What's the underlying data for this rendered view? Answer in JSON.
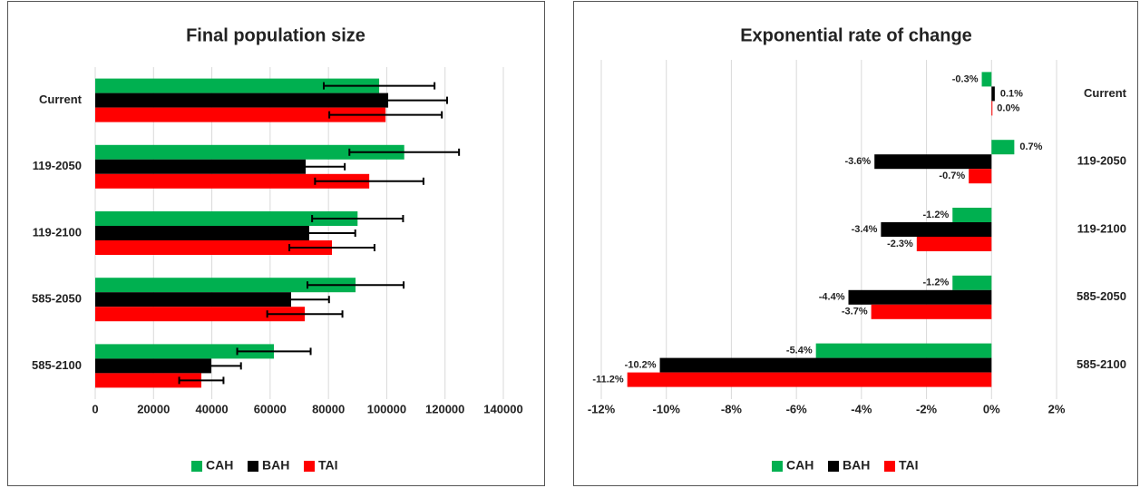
{
  "chart_data": [
    {
      "type": "bar",
      "orientation": "horizontal",
      "title": "Final population size",
      "categories": [
        "Current",
        "119-2050",
        "119-2100",
        "585-2050",
        "585-2100"
      ],
      "series": [
        {
          "name": "CAH",
          "color": "#00b050",
          "values": [
            97400,
            106000,
            90000,
            89300,
            61300
          ],
          "errors": [
            19000,
            18800,
            15600,
            16500,
            12600
          ]
        },
        {
          "name": "BAH",
          "color": "#000000",
          "values": [
            100500,
            72200,
            73400,
            67200,
            39800
          ],
          "errors": [
            20200,
            13400,
            15800,
            13000,
            10200
          ]
        },
        {
          "name": "TAI",
          "color": "#ff0000",
          "values": [
            99600,
            94000,
            81200,
            71900,
            36400
          ],
          "errors": [
            19300,
            18600,
            14600,
            12900,
            7600
          ]
        }
      ],
      "xlim": [
        0,
        140000
      ],
      "xticks": [
        0,
        20000,
        40000,
        60000,
        80000,
        100000,
        120000,
        140000
      ],
      "grid": true,
      "category_side": "left",
      "legend": "bottom"
    },
    {
      "type": "bar",
      "orientation": "horizontal",
      "title": "Exponential rate of change",
      "categories": [
        "Current",
        "119-2050",
        "119-2100",
        "585-2050",
        "585-2100"
      ],
      "series": [
        {
          "name": "CAH",
          "color": "#00b050",
          "values": [
            -0.3,
            0.7,
            -1.2,
            -1.2,
            -5.4
          ],
          "value_labels": [
            "-0.3%",
            "0.7%",
            "-1.2%",
            "-1.2%",
            "-5.4%"
          ]
        },
        {
          "name": "BAH",
          "color": "#000000",
          "values": [
            0.1,
            -3.6,
            -3.4,
            -4.4,
            -10.2
          ],
          "value_labels": [
            "0.1%",
            "-3.6%",
            "-3.4%",
            "-4.4%",
            "-10.2%"
          ]
        },
        {
          "name": "TAI",
          "color": "#ff0000",
          "values": [
            0.0,
            -0.7,
            -2.3,
            -3.7,
            -11.2
          ],
          "value_labels": [
            "0.0%",
            "-0.7%",
            "-2.3%",
            "-3.7%",
            "-11.2%"
          ]
        }
      ],
      "xlim": [
        -12,
        2
      ],
      "xticks": [
        {
          "value": -12,
          "label": "-12%"
        },
        {
          "value": -10,
          "label": "-10%"
        },
        {
          "value": -8,
          "label": "-8%"
        },
        {
          "value": -6,
          "label": "-6%"
        },
        {
          "value": -4,
          "label": "-4%"
        },
        {
          "value": -2,
          "label": "-2%"
        },
        {
          "value": 0,
          "label": "0%"
        },
        {
          "value": 2,
          "label": "2%"
        }
      ],
      "grid": true,
      "category_side": "right",
      "legend": "bottom"
    }
  ]
}
